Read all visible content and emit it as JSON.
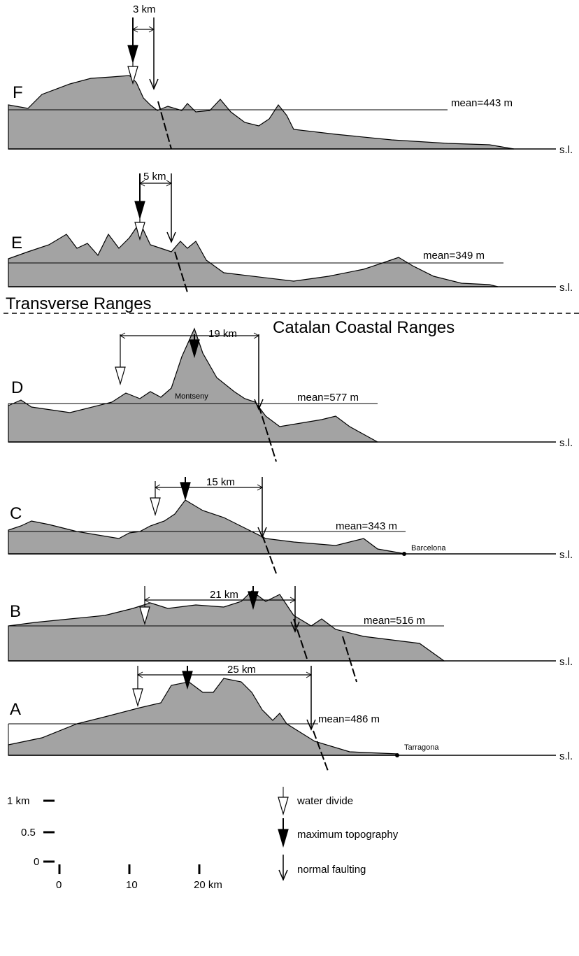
{
  "profiles": [
    {
      "label": "F",
      "distance": "3 km",
      "mean": "mean=443 m",
      "sea_level": "s.l."
    },
    {
      "label": "E",
      "distance": "5 km",
      "mean": "mean=349 m",
      "sea_level": "s.l."
    },
    {
      "label": "D",
      "distance": "19 km",
      "mean": "mean=577 m",
      "sea_level": "s.l.",
      "place": "Montseny"
    },
    {
      "label": "C",
      "distance": "15 km",
      "mean": "mean=343 m",
      "sea_level": "s.l.",
      "place": "Barcelona"
    },
    {
      "label": "B",
      "distance": "21 km",
      "mean": "mean=516 m",
      "sea_level": "s.l."
    },
    {
      "label": "A",
      "distance": "25 km",
      "mean": "mean=486 m",
      "sea_level": "s.l.",
      "place": "Tarragona"
    }
  ],
  "regions": {
    "upper": "Transverse Ranges",
    "lower": "Catalan Coastal Ranges"
  },
  "legend": {
    "height_labels": [
      "1 km",
      "0.5",
      "0"
    ],
    "distance_labels": [
      "0",
      "10",
      "20 km"
    ],
    "items": [
      "water divide",
      "maximum topography",
      "normal faulting"
    ]
  }
}
